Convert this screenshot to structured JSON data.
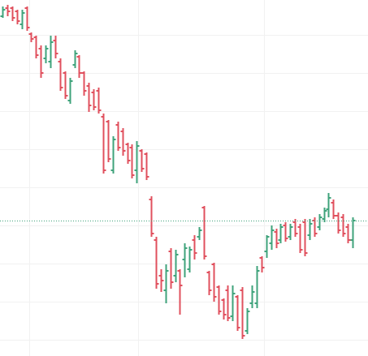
{
  "chart_data": {
    "type": "ohlc",
    "up_color": "#3fa37b",
    "down_color": "#e0505e",
    "grid": true,
    "grid_color": "#f1f1f1",
    "price_line": true,
    "xlim": [
      -0.508,
      76.22
    ],
    "xticks": [
      5.59,
      28.29,
      54.54
    ],
    "ylim": [
      0,
      439
    ],
    "yticks": [
      396,
      349,
      302,
      255,
      208,
      161,
      114,
      67,
      20
    ],
    "series": [
      {
        "open": [
          419,
          429,
          429,
          425,
          409,
          429,
          397,
          393,
          379,
          367,
          363,
          389,
          363,
          349,
          315,
          359,
          369,
          349,
          333,
          325,
          327,
          295,
          289,
          229,
          285,
          277,
          261,
          257,
          229,
          253,
          249,
          193,
          143,
          99,
          81,
          129,
          99,
          105,
          119,
          107,
          143,
          147,
          183,
          103,
          113,
          85,
          69,
          81,
          49,
          73,
          81,
          31,
          65,
          65,
          121,
          129,
          139,
          153,
          143,
          161,
          147,
          165,
          159,
          165,
          149,
          167,
          159,
          169,
          181,
          189,
          173,
          171,
          159,
          143
        ],
        "high": [
          431,
          433,
          431,
          427,
          427,
          431,
          399,
          395,
          383,
          383,
          395,
          395,
          367,
          351,
          343,
          377,
          371,
          351,
          337,
          329,
          331,
          299,
          291,
          271,
          289,
          281,
          263,
          261,
          265,
          255,
          251,
          197,
          147,
          107,
          113,
          133,
          131,
          107,
          139,
          135,
          149,
          159,
          185,
          105,
          115,
          87,
          71,
          87,
          87,
          75,
          85,
          59,
          87,
          111,
          123,
          149,
          161,
          157,
          163,
          165,
          163,
          169,
          163,
          169,
          169,
          171,
          175,
          183,
          201,
          193,
          177,
          175,
          163,
          171
        ],
        "low": [
          417,
          419,
          413,
          409,
          403,
          401,
          387,
          367,
          343,
          361,
          355,
          367,
          327,
          317,
          311,
          355,
          343,
          321,
          301,
          303,
          299,
          225,
          239,
          225,
          253,
          247,
          237,
          219,
          213,
          227,
          217,
          147,
          83,
          79,
          65,
          83,
          91,
          51,
          97,
          103,
          119,
          143,
          119,
          75,
          67,
          51,
          45,
          43,
          43,
          31,
          21,
          27,
          59,
          59,
          103,
          121,
          131,
          133,
          139,
          141,
          143,
          147,
          127,
          123,
          143,
          147,
          155,
          165,
          171,
          169,
          151,
          147,
          139,
          133
        ],
        "close": [
          427,
          425,
          417,
          413,
          423,
          405,
          391,
          371,
          349,
          379,
          387,
          373,
          331,
          321,
          339,
          373,
          349,
          327,
          309,
          307,
          303,
          229,
          243,
          267,
          257,
          253,
          241,
          223,
          259,
          231,
          221,
          151,
          89,
          93,
          105,
          91,
          125,
          87,
          133,
          131,
          127,
          155,
          123,
          81,
          73,
          55,
          51,
          47,
          77,
          35,
          25,
          55,
          79,
          105,
          109,
          147,
          155,
          139,
          159,
          145,
          159,
          151,
          131,
          127,
          163,
          151,
          171,
          179,
          195,
          173,
          155,
          151,
          143,
          167
        ]
      }
    ]
  }
}
